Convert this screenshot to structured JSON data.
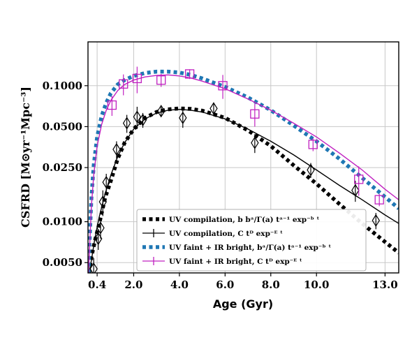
{
  "chart_data": {
    "type": "scatter",
    "xlabel": "Age (Gyr)",
    "ylabel": "CSFRD [M⊙yr⁻¹Mpc⁻³]",
    "xlim": [
      0,
      13.6
    ],
    "ylim": [
      0.0042,
      0.21
    ],
    "yscale": "log",
    "grid": true,
    "legend_position": "bottom-right",
    "x_ticks": [
      {
        "value": 0.4,
        "label": "0.4"
      },
      {
        "value": 2.0,
        "label": "2.0"
      },
      {
        "value": 4.0,
        "label": "4.0"
      },
      {
        "value": 6.0,
        "label": "6.0"
      },
      {
        "value": 8.0,
        "label": "8.0"
      },
      {
        "value": 10.0,
        "label": "10.0"
      },
      {
        "value": 13.0,
        "label": "13.0"
      }
    ],
    "y_ticks": [
      {
        "value": 0.005,
        "label": "0.0050"
      },
      {
        "value": 0.01,
        "label": "0.0100"
      },
      {
        "value": 0.025,
        "label": "0.0250"
      },
      {
        "value": 0.05,
        "label": "0.0500"
      },
      {
        "value": 0.1,
        "label": "0.1000"
      }
    ],
    "legend": [
      {
        "label": "UV compilation, b bᵃ/Γ(a) tᵃ⁻¹ exp⁻ᵇ ᵗ",
        "style": "black-dotted",
        "color": "#000000"
      },
      {
        "label": "UV compilation, C tᴰ exp⁻ᴱ ᵗ",
        "style": "black-line-marker",
        "color": "#000000"
      },
      {
        "label": "UV faint + IR bright, bᵃ/Γ(a) tᵃ⁻¹ exp⁻ᵇ ᵗ",
        "style": "blue-dotted",
        "color": "#1f77b4"
      },
      {
        "label": "UV faint + IR bright, C tᴰ exp⁻ᴱ ᵗ",
        "style": "magenta-line-marker",
        "color": "#c020c0"
      }
    ],
    "series": [
      {
        "name": "UV compilation, b bᵃ/Γ(a) tᵃ⁻¹ exp⁻ᵇ ᵗ",
        "kind": "dotted-curve",
        "color": "#000000",
        "x": [
          0.05,
          0.15,
          0.3,
          0.5,
          0.75,
          1.0,
          1.3,
          1.6,
          2.0,
          2.5,
          3.0,
          3.5,
          4.0,
          4.5,
          5.0,
          6.0,
          7.0,
          8.0,
          9.0,
          10.0,
          11.0,
          12.0,
          13.0,
          13.6
        ],
        "y": [
          0.0042,
          0.0055,
          0.0072,
          0.0098,
          0.015,
          0.02,
          0.029,
          0.038,
          0.048,
          0.058,
          0.064,
          0.067,
          0.068,
          0.0675,
          0.0655,
          0.058,
          0.047,
          0.036,
          0.026,
          0.019,
          0.0135,
          0.0097,
          0.0071,
          0.0059
        ]
      },
      {
        "name": "UV compilation, C tᴰ exp⁻ᴱ ᵗ",
        "kind": "line",
        "color": "#000000",
        "x": [
          0.05,
          0.15,
          0.3,
          0.5,
          0.75,
          1.0,
          1.3,
          1.6,
          2.0,
          2.5,
          3.0,
          3.5,
          4.0,
          4.5,
          5.0,
          6.0,
          7.0,
          8.0,
          9.0,
          10.0,
          11.0,
          12.0,
          13.0,
          13.6
        ],
        "y": [
          0.0042,
          0.0052,
          0.0075,
          0.011,
          0.016,
          0.022,
          0.03,
          0.038,
          0.048,
          0.057,
          0.063,
          0.066,
          0.067,
          0.066,
          0.064,
          0.057,
          0.048,
          0.039,
          0.031,
          0.024,
          0.0185,
          0.0145,
          0.0112,
          0.0097
        ]
      },
      {
        "name": "UV faint + IR bright, bᵃ/Γ(a) tᵃ⁻¹ exp⁻ᵇ ᵗ",
        "kind": "dotted-curve",
        "color": "#1f77b4",
        "x": [
          0.02,
          0.08,
          0.15,
          0.25,
          0.4,
          0.6,
          0.8,
          1.0,
          1.3,
          1.6,
          2.0,
          2.5,
          3.0,
          3.5,
          4.0,
          4.5,
          5.0,
          6.0,
          7.0,
          8.0,
          9.0,
          10.0,
          11.0,
          12.0,
          13.0,
          13.6
        ],
        "y": [
          0.0042,
          0.008,
          0.015,
          0.026,
          0.042,
          0.06,
          0.075,
          0.088,
          0.102,
          0.11,
          0.118,
          0.124,
          0.127,
          0.127,
          0.125,
          0.12,
          0.113,
          0.098,
          0.082,
          0.066,
          0.051,
          0.039,
          0.029,
          0.021,
          0.0152,
          0.0125
        ]
      },
      {
        "name": "UV faint + IR bright, C tᴰ exp⁻ᴱ ᵗ",
        "kind": "line",
        "color": "#c020c0",
        "x": [
          0.02,
          0.08,
          0.15,
          0.25,
          0.4,
          0.6,
          0.8,
          1.0,
          1.3,
          1.6,
          2.0,
          2.5,
          3.0,
          3.5,
          4.0,
          4.5,
          5.0,
          6.0,
          7.0,
          8.0,
          9.0,
          10.0,
          11.0,
          12.0,
          13.0,
          13.6
        ],
        "y": [
          0.0042,
          0.007,
          0.013,
          0.022,
          0.036,
          0.052,
          0.066,
          0.078,
          0.092,
          0.102,
          0.11,
          0.116,
          0.119,
          0.12,
          0.118,
          0.114,
          0.108,
          0.095,
          0.08,
          0.066,
          0.053,
          0.042,
          0.032,
          0.024,
          0.0173,
          0.0145
        ]
      },
      {
        "name": "UV compilation, C tᴰ exp⁻ᴱ ᵗ",
        "kind": "markers",
        "marker": "diamond",
        "color": "#000000",
        "x": [
          0.25,
          0.45,
          0.55,
          0.65,
          0.8,
          1.25,
          1.7,
          2.15,
          2.4,
          3.2,
          4.15,
          5.5,
          7.3,
          9.75,
          11.7,
          12.6
        ],
        "y": [
          0.0045,
          0.0075,
          0.009,
          0.014,
          0.0195,
          0.034,
          0.053,
          0.059,
          0.056,
          0.065,
          0.058,
          0.068,
          0.038,
          0.024,
          0.017,
          0.0102
        ],
        "yerr": [
          0.0009,
          0.0013,
          0.0015,
          0.003,
          0.003,
          0.005,
          0.008,
          0.011,
          0.007,
          0.005,
          0.009,
          0.007,
          0.006,
          0.003,
          0.003,
          0.0014
        ]
      },
      {
        "name": "UV faint + IR bright, C tᴰ exp⁻ᴱ ᵗ",
        "kind": "markers",
        "marker": "square",
        "color": "#c020c0",
        "x": [
          1.05,
          1.55,
          2.15,
          3.2,
          4.45,
          5.9,
          7.3,
          9.85,
          11.85,
          12.75
        ],
        "y": [
          0.072,
          0.103,
          0.113,
          0.11,
          0.122,
          0.1,
          0.062,
          0.037,
          0.0205,
          0.0145
        ],
        "yerr": [
          0.012,
          0.018,
          0.025,
          0.012,
          0.01,
          0.02,
          0.012,
          0.004,
          0.005,
          0.0015
        ]
      }
    ]
  }
}
